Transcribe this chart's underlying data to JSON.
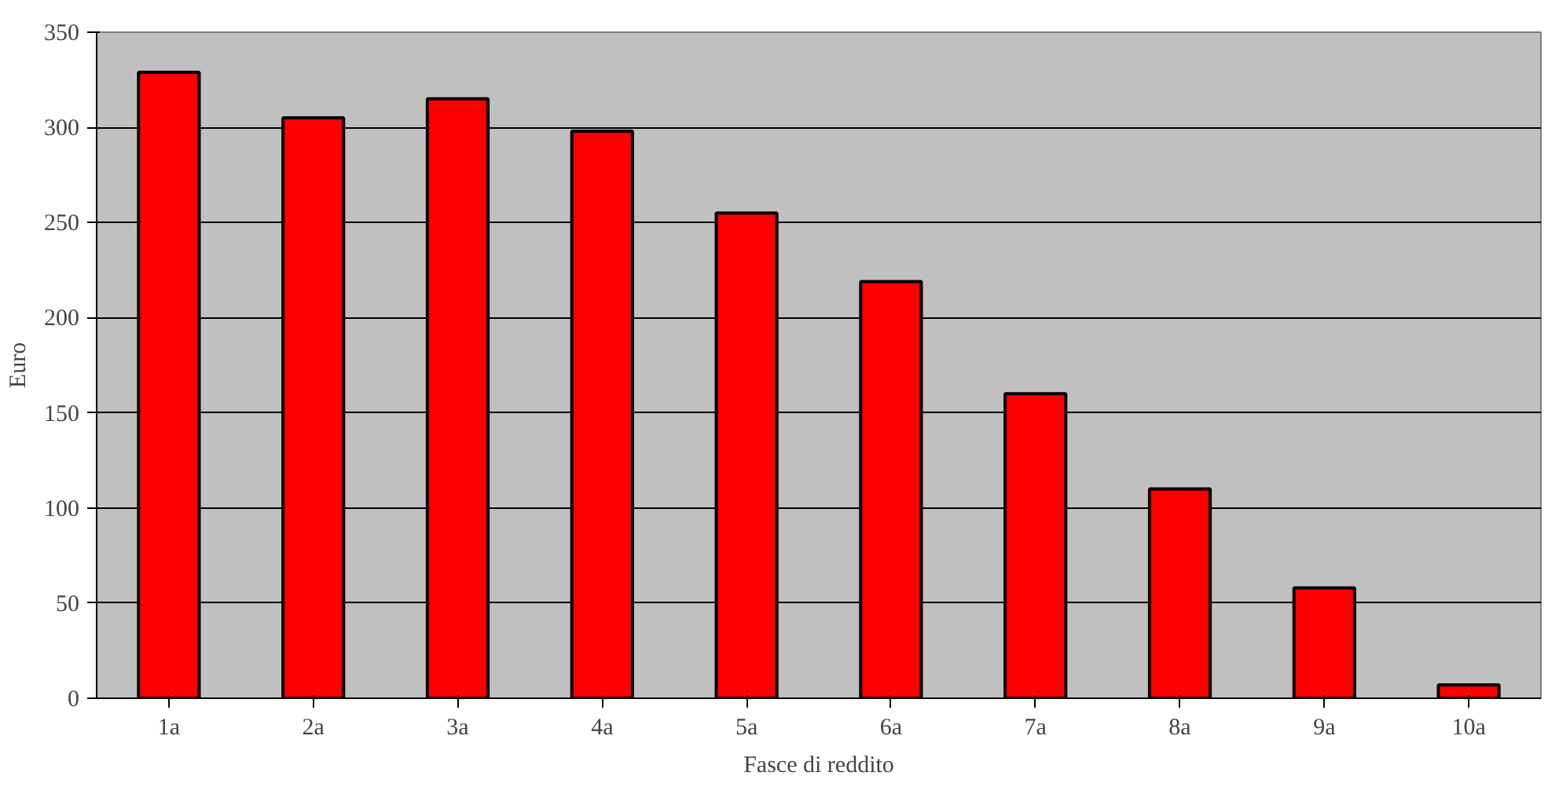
{
  "chart_data": {
    "type": "bar",
    "xlabel": "Fasce di reddito",
    "ylabel": "Euro",
    "categories": [
      "1a",
      "2a",
      "3a",
      "4a",
      "5a",
      "6a",
      "7a",
      "8a",
      "9a",
      "10a"
    ],
    "values": [
      329,
      305,
      315,
      298,
      255,
      219,
      160,
      110,
      58,
      7
    ],
    "color": "#ff0000",
    "ylim": [
      0,
      350
    ],
    "yticks": [
      0,
      50,
      100,
      150,
      200,
      250,
      300,
      350
    ],
    "grid": "y"
  }
}
